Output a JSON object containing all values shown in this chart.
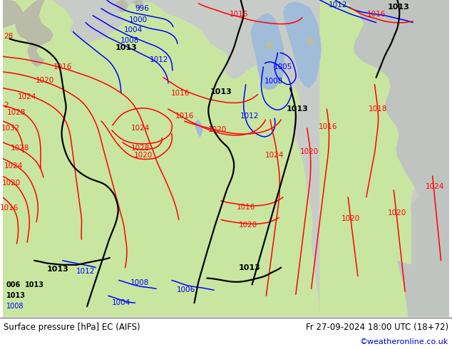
{
  "title_left": "Surface pressure [hPa] EC (AIFS)",
  "title_right": "Fr 27-09-2024 18:00 UTC (18+72)",
  "copyright": "©weatheronline.co.uk",
  "figsize": [
    6.34,
    4.9
  ],
  "dpi": 100,
  "land_green": "#c8e6a0",
  "land_green2": "#b8dc90",
  "ocean_gray": "#c8ccc8",
  "water_blue": "#a0c0d8",
  "footer_line_color": "#000000"
}
